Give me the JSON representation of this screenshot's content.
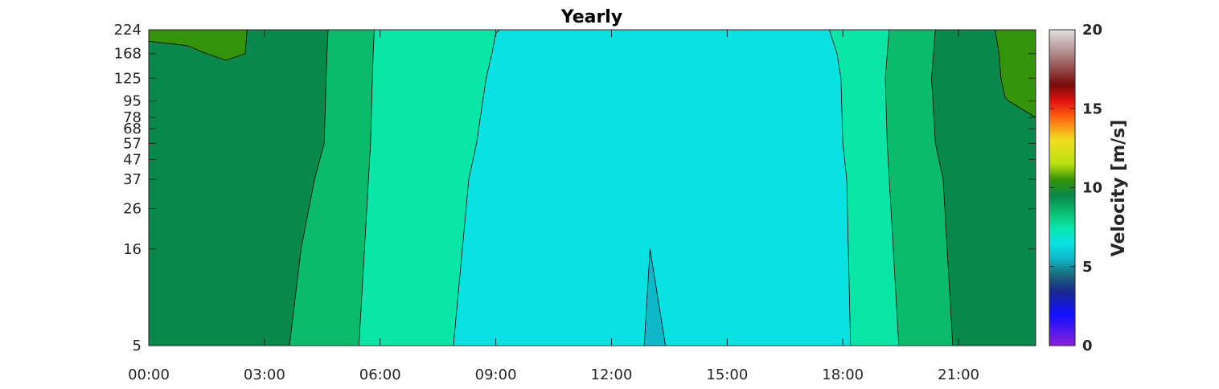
{
  "chart_data": {
    "type": "contourf",
    "title": "Yearly",
    "x_tick_labels": [
      "00:00",
      "03:00",
      "06:00",
      "09:00",
      "12:00",
      "15:00",
      "18:00",
      "21:00"
    ],
    "x_tick_hours": [
      0,
      3,
      6,
      9,
      12,
      15,
      18,
      21
    ],
    "xlim_hours": [
      0,
      23
    ],
    "y_tick_labels": [
      "5",
      "16",
      "26",
      "37",
      "47",
      "57",
      "68",
      "78",
      "95",
      "125",
      "168",
      "224"
    ],
    "y_levels": [
      5,
      16,
      26,
      37,
      47,
      57,
      68,
      78,
      95,
      125,
      168,
      224
    ],
    "colorbar": {
      "label": "Velocity [m/s]",
      "range": [
        0,
        20
      ],
      "tick_values": [
        0,
        5,
        10,
        15,
        20
      ],
      "tick_labels": [
        "0",
        "5",
        "10",
        "15",
        "20"
      ],
      "colormap_stops": [
        {
          "value": 0,
          "color": "#8a1fd9"
        },
        {
          "value": 2,
          "color": "#1010ff"
        },
        {
          "value": 3.5,
          "color": "#1a2a8a"
        },
        {
          "value": 4.5,
          "color": "#1a6a7a"
        },
        {
          "value": 5.5,
          "color": "#0fb8c8"
        },
        {
          "value": 6.5,
          "color": "#0ae2e2"
        },
        {
          "value": 7.5,
          "color": "#0be6a8"
        },
        {
          "value": 8.5,
          "color": "#0abb6c"
        },
        {
          "value": 9.5,
          "color": "#08884a"
        },
        {
          "value": 10.5,
          "color": "#349308"
        },
        {
          "value": 11.5,
          "color": "#b8e010"
        },
        {
          "value": 13,
          "color": "#f0e020"
        },
        {
          "value": 14.5,
          "color": "#ff6010"
        },
        {
          "value": 15.5,
          "color": "#e01010"
        },
        {
          "value": 16.5,
          "color": "#7a0a0a"
        },
        {
          "value": 18,
          "color": "#a06a6a"
        },
        {
          "value": 20,
          "color": "#e0e0e0"
        }
      ]
    },
    "velocity_bands": [
      {
        "name": "9-10 m/s",
        "color": "#08884a",
        "boundary": [
          [
            0,
            224
          ],
          [
            23,
            224
          ],
          [
            23,
            5
          ],
          [
            0,
            5
          ]
        ]
      },
      {
        "name": "10-11 m/s (left)",
        "color": "#349308",
        "boundary": [
          [
            0,
            224
          ],
          [
            2.55,
            224
          ],
          [
            2.5,
            168
          ],
          [
            2,
            155
          ],
          [
            1.5,
            168
          ],
          [
            1,
            185
          ],
          [
            0,
            195
          ]
        ]
      },
      {
        "name": "10-11 m/s (right)",
        "color": "#349308",
        "boundary": [
          [
            21.95,
            224
          ],
          [
            23,
            224
          ],
          [
            23,
            78
          ],
          [
            22.3,
            95
          ],
          [
            22.2,
            100
          ],
          [
            22.1,
            125
          ],
          [
            22.05,
            168
          ]
        ]
      },
      {
        "name": "8-9 m/s",
        "color": "#0abb6c",
        "boundary": [
          [
            4.65,
            224
          ],
          [
            20.4,
            224
          ],
          [
            20.35,
            168
          ],
          [
            20.3,
            125
          ],
          [
            20.4,
            57
          ],
          [
            20.6,
            37
          ],
          [
            20.85,
            5
          ],
          [
            3.65,
            5
          ],
          [
            3.95,
            16
          ],
          [
            4.3,
            37
          ],
          [
            4.55,
            57
          ],
          [
            4.6,
            125
          ],
          [
            4.62,
            168
          ]
        ]
      },
      {
        "name": "7-8 m/s",
        "color": "#0be6a8",
        "boundary": [
          [
            5.85,
            224
          ],
          [
            19.2,
            224
          ],
          [
            19.15,
            168
          ],
          [
            19.1,
            125
          ],
          [
            19.15,
            57
          ],
          [
            19.45,
            5
          ],
          [
            5.45,
            5
          ],
          [
            5.75,
            57
          ],
          [
            5.8,
            125
          ],
          [
            5.82,
            168
          ]
        ]
      },
      {
        "name": "6-7 m/s",
        "color": "#0ae2e2",
        "boundary": [
          [
            9.1,
            224
          ],
          [
            17.65,
            224
          ],
          [
            17.85,
            168
          ],
          [
            17.95,
            125
          ],
          [
            18.0,
            57
          ],
          [
            18.1,
            37
          ],
          [
            18.2,
            5
          ],
          [
            7.9,
            5
          ],
          [
            8.3,
            37
          ],
          [
            8.5,
            57
          ],
          [
            8.75,
            125
          ],
          [
            8.9,
            168
          ],
          [
            9.0,
            215
          ]
        ]
      },
      {
        "name": "5-6 m/s",
        "color": "#0fb8c8",
        "boundary": [
          [
            12.85,
            5
          ],
          [
            13.0,
            16
          ],
          [
            13.4,
            5
          ]
        ]
      }
    ]
  }
}
